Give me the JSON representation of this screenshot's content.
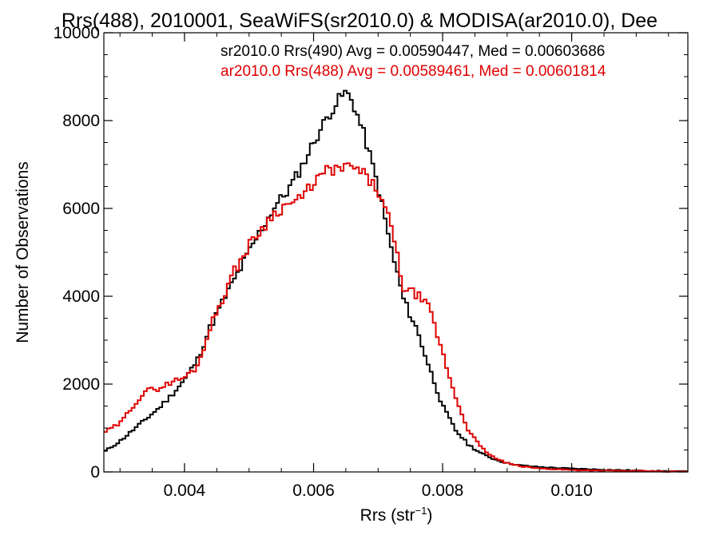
{
  "chart_data": {
    "type": "line",
    "step": true,
    "title": "Rrs(488), 2010001, SeaWiFS(sr2010.0) & MODISA(ar2010.0), Dee",
    "xlabel": "Rrs (str",
    "xlabel_sup": "−1",
    "xlabel_close": ")",
    "ylabel": "Number of Observations",
    "xlim": [
      0.00275,
      0.0118
    ],
    "ylim": [
      0,
      10000
    ],
    "x_ticks": [
      0.004,
      0.006,
      0.008,
      0.01
    ],
    "x_tick_labels": [
      "0.004",
      "0.006",
      "0.008",
      "0.010"
    ],
    "y_ticks": [
      0,
      2000,
      4000,
      6000,
      8000,
      10000
    ],
    "y_tick_labels": [
      "0",
      "2000",
      "4000",
      "6000",
      "8000",
      "10000"
    ],
    "legend_position": "top-right",
    "legend": [
      {
        "text": "sr2010.0 Rrs(490) Avg = 0.00590447, Med = 0.00603686",
        "color": "#000000"
      },
      {
        "text": "ar2010.0 Rrs(488) Avg = 0.00589461, Med = 0.00601814",
        "color": "#e00000"
      }
    ],
    "series": [
      {
        "color": "#000000",
        "points": [
          [
            0.00275,
            450
          ],
          [
            0.003,
            700
          ],
          [
            0.0032,
            950
          ],
          [
            0.0034,
            1200
          ],
          [
            0.0036,
            1450
          ],
          [
            0.0038,
            1750
          ],
          [
            0.004,
            2100
          ],
          [
            0.0042,
            2550
          ],
          [
            0.0044,
            3300
          ],
          [
            0.0046,
            3900
          ],
          [
            0.0048,
            4450
          ],
          [
            0.005,
            5000
          ],
          [
            0.0052,
            5550
          ],
          [
            0.0054,
            6050
          ],
          [
            0.0056,
            6400
          ],
          [
            0.0058,
            6900
          ],
          [
            0.006,
            7500
          ],
          [
            0.0062,
            8050
          ],
          [
            0.0064,
            8500
          ],
          [
            0.0065,
            8650
          ],
          [
            0.0066,
            8450
          ],
          [
            0.0068,
            7600
          ],
          [
            0.007,
            6500
          ],
          [
            0.0072,
            5100
          ],
          [
            0.0074,
            3900
          ],
          [
            0.0076,
            3250
          ],
          [
            0.0078,
            2350
          ],
          [
            0.008,
            1500
          ],
          [
            0.0082,
            950
          ],
          [
            0.0084,
            620
          ],
          [
            0.0086,
            420
          ],
          [
            0.0088,
            290
          ],
          [
            0.009,
            200
          ],
          [
            0.0092,
            150
          ],
          [
            0.0095,
            110
          ],
          [
            0.01,
            75
          ],
          [
            0.0105,
            50
          ],
          [
            0.011,
            30
          ],
          [
            0.0115,
            15
          ],
          [
            0.0118,
            10
          ]
        ]
      },
      {
        "color": "#e00000",
        "points": [
          [
            0.00275,
            900
          ],
          [
            0.003,
            1100
          ],
          [
            0.0032,
            1500
          ],
          [
            0.0034,
            1850
          ],
          [
            0.0036,
            1900
          ],
          [
            0.0038,
            2050
          ],
          [
            0.004,
            2150
          ],
          [
            0.0042,
            2400
          ],
          [
            0.0044,
            3300
          ],
          [
            0.0046,
            4000
          ],
          [
            0.0048,
            4650
          ],
          [
            0.005,
            5150
          ],
          [
            0.0052,
            5550
          ],
          [
            0.0054,
            5900
          ],
          [
            0.0056,
            6100
          ],
          [
            0.0058,
            6200
          ],
          [
            0.006,
            6600
          ],
          [
            0.0062,
            6850
          ],
          [
            0.0064,
            6900
          ],
          [
            0.0066,
            6950
          ],
          [
            0.0068,
            6750
          ],
          [
            0.007,
            6400
          ],
          [
            0.0072,
            5600
          ],
          [
            0.0074,
            4150
          ],
          [
            0.0076,
            4050
          ],
          [
            0.0078,
            3700
          ],
          [
            0.008,
            2700
          ],
          [
            0.0082,
            1700
          ],
          [
            0.0084,
            950
          ],
          [
            0.0086,
            550
          ],
          [
            0.0088,
            320
          ],
          [
            0.009,
            200
          ],
          [
            0.0092,
            130
          ],
          [
            0.0095,
            80
          ],
          [
            0.01,
            45
          ],
          [
            0.0105,
            30
          ],
          [
            0.011,
            20
          ],
          [
            0.0115,
            10
          ],
          [
            0.0118,
            8
          ]
        ]
      }
    ]
  }
}
